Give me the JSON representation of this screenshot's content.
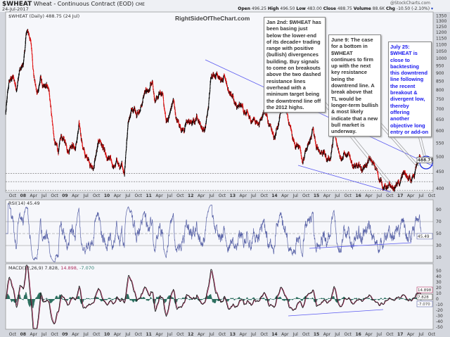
{
  "header": {
    "symbol": "$WHEAT",
    "description": "Wheat - Continuous Contract (EOD)",
    "exchange": "CME",
    "date": "24-Jul-2017",
    "credit": "@StockCharts.com",
    "quote": {
      "open_label": "Open",
      "open": "496.25",
      "high_label": "High",
      "high": "496.50",
      "low_label": "Low",
      "low": "483.00",
      "close_label": "Close",
      "close": "488.75",
      "volume_label": "Volume",
      "volume": "88.6K",
      "chg_label": "Chg",
      "chg": "-10.50 (-2.10%)"
    }
  },
  "watermark": "RightSideOfTheChart.com",
  "annotations": {
    "jan2": "Jan 2nd: $WHEAT has been basing just below the lower-end of its decade+ trading range with positive (bullish) divergences building. Buy signals to come on breakouts above the two dashed resistance lines overhead with a mininum target being the downtrend line off the 2012 highs.",
    "jun9": "June 9: The case for a bottom in $WHEAT continues to firm up with the next key resistance being the downtrend line. A break above that TL would be longer-term bullish & most likely indicate that a new bull market is underway.",
    "jul25": "July 25: $WHEAT is close to backtesting this downtrend line following the recent breakout & divergent low, thereby offering another objective long entry or add-on"
  },
  "colors": {
    "up_bar": "#000000",
    "down_bar": "#e01010",
    "trendline": "#5a5af0",
    "rsi": "#5a64a8",
    "macd": "#111111",
    "signal": "#b03060",
    "histogram": "#2e7060",
    "panel_bg": "#f6f7fb"
  },
  "chart_data": [
    {
      "type": "line",
      "panel": "price",
      "title": "$WHEAT (Daily) 488.75 (24 Jul)",
      "scale": "log",
      "ylim": [
        390,
        1380
      ],
      "y_ticks": [
        "1350",
        "1300",
        "1250",
        "1200",
        "1150",
        "1100",
        "1050",
        "1000",
        "950",
        "900",
        "850",
        "800",
        "750",
        "700",
        "650",
        "600",
        "550",
        "500",
        "450",
        "400"
      ],
      "last_value": "488.75",
      "x_ticks": [
        "Oct",
        "08",
        "Apr",
        "Jul",
        "Oct",
        "09",
        "Apr",
        "Jul",
        "Oct",
        "10",
        "Apr",
        "Jul",
        "Oct",
        "11",
        "Apr",
        "Jul",
        "Oct",
        "12",
        "Apr",
        "Jul",
        "Oct",
        "13",
        "Apr",
        "Jul",
        "Oct",
        "14",
        "Apr",
        "Jul",
        "Oct",
        "15",
        "Apr",
        "Jul",
        "Oct",
        "16",
        "Apr",
        "Jul",
        "Oct",
        "17",
        "Apr",
        "Jul",
        "Oct"
      ],
      "x_start": "2007-08",
      "x_end": "2017-10",
      "monthly_close": [
        680,
        850,
        880,
        800,
        920,
        950,
        1200,
        1150,
        900,
        780,
        880,
        820,
        820,
        700,
        560,
        520,
        580,
        560,
        520,
        540,
        530,
        640,
        540,
        500,
        480,
        460,
        520,
        560,
        540,
        490,
        500,
        470,
        480,
        470,
        440,
        620,
        700,
        700,
        680,
        720,
        790,
        800,
        850,
        740,
        780,
        780,
        640,
        680,
        750,
        640,
        620,
        600,
        640,
        640,
        640,
        650,
        620,
        600,
        700,
        890,
        880,
        880,
        860,
        860,
        790,
        770,
        720,
        720,
        700,
        690,
        660,
        660,
        640,
        650,
        690,
        650,
        610,
        570,
        620,
        690,
        700,
        640,
        580,
        530,
        540,
        480,
        520,
        560,
        610,
        530,
        510,
        520,
        490,
        490,
        590,
        540,
        490,
        510,
        510,
        480,
        470,
        470,
        450,
        470,
        500,
        480,
        460,
        420,
        400,
        400,
        410,
        400,
        410,
        420,
        450,
        430,
        420,
        430,
        480,
        488.75
      ],
      "resistance_levels": [
        445,
        420
      ],
      "support_level": 395
    },
    {
      "type": "line",
      "panel": "rsi",
      "title": "RSI(14) 45.49",
      "last_value": "45.49",
      "y_ticks": [
        "90",
        "70",
        "50",
        "30",
        "10"
      ],
      "levels": [
        70,
        50,
        30
      ]
    },
    {
      "type": "line",
      "panel": "macd",
      "title_parts": [
        "MACD(12,26,9) 7.828, ",
        "14.898, ",
        "-7.070"
      ],
      "values": {
        "macd": "7.828",
        "signal": "14.898",
        "histogram": "-7.070"
      },
      "y_ticks": [
        "50",
        "40",
        "30",
        "20",
        "10",
        "0",
        "-10",
        "-20",
        "-30",
        "-40",
        "-50"
      ]
    }
  ]
}
